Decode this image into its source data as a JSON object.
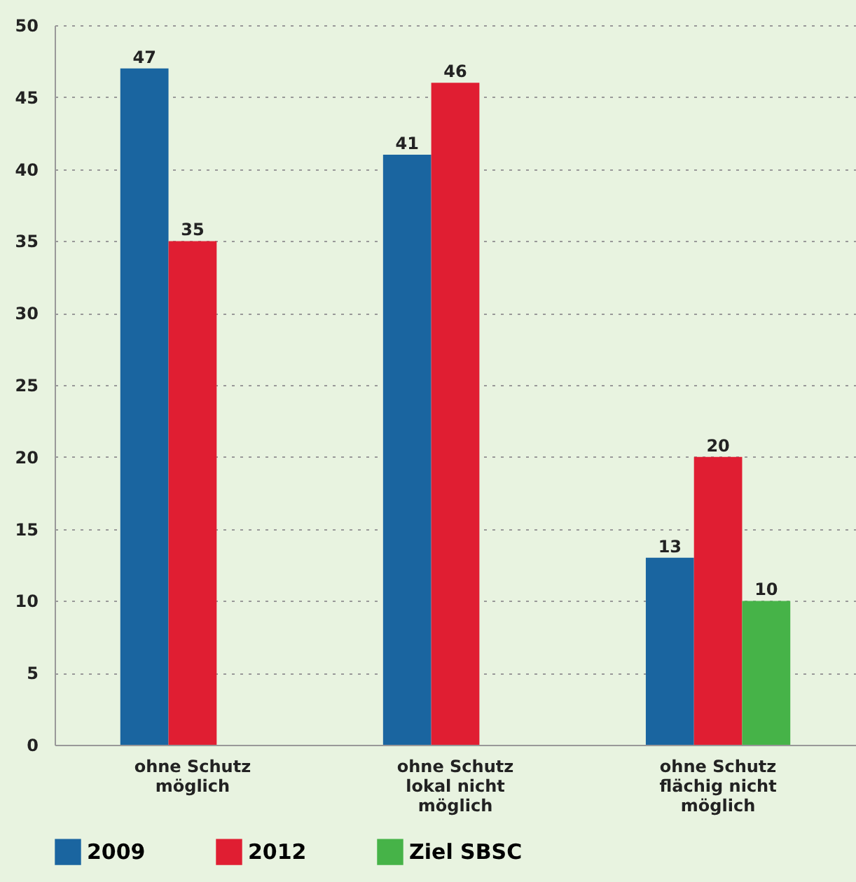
{
  "chart_data": {
    "type": "bar",
    "categories": [
      "ohne Schutz\nmöglich",
      "ohne Schutz\nlokal nicht\nmöglich",
      "ohne Schutz\nflächig nicht\nmöglich"
    ],
    "series": [
      {
        "name": "2009",
        "color": "#1a65a0",
        "values": [
          47,
          41,
          13
        ]
      },
      {
        "name": "2012",
        "color": "#e01e32",
        "values": [
          35,
          46,
          20
        ]
      },
      {
        "name": "Ziel SBSC",
        "color": "#46b348",
        "values": [
          null,
          null,
          10
        ]
      }
    ],
    "ylim": [
      0,
      50
    ],
    "yticks": [
      0,
      5,
      10,
      15,
      20,
      25,
      30,
      35,
      40,
      45,
      50
    ],
    "grid": "y",
    "legend": "bottom",
    "data_labels": true
  }
}
